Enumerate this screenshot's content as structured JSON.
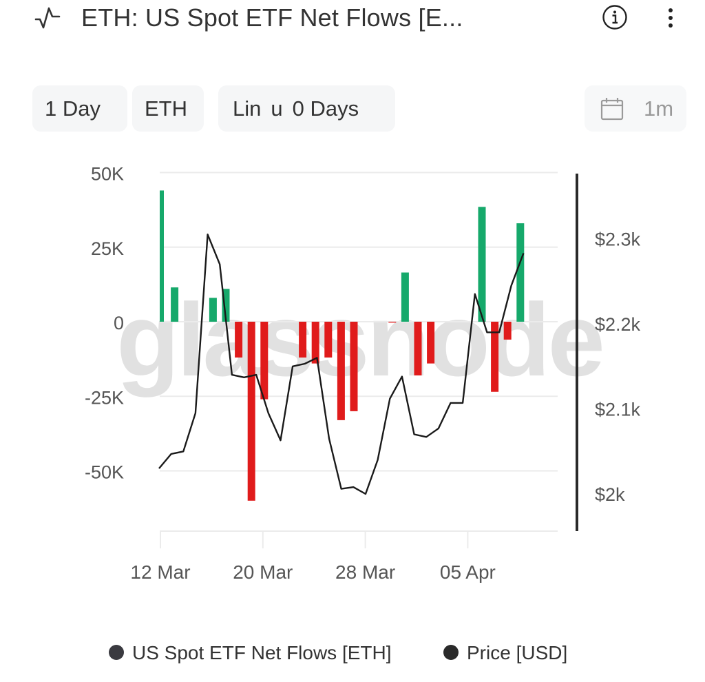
{
  "header": {
    "icon": "metric-pulse-icon",
    "title": "ETH: US Spot ETF Net Flows [E...",
    "info_icon": "info-icon",
    "more_icon": "more-vertical-icon"
  },
  "toolbar": {
    "resolution": "1 Day",
    "asset": "ETH",
    "scale_label": "Lin",
    "scale_sep": "u",
    "smoothing": "0 Days",
    "date_icon": "calendar-icon",
    "range": "1m"
  },
  "colors": {
    "positive": "#16a96b",
    "negative": "#e01b1b",
    "price_line": "#1a1a1a",
    "grid": "#ebebeb",
    "watermark": "#d7d7d7",
    "right_axis": "#2a2a2a"
  },
  "watermark": "glassnode",
  "legend": {
    "items": [
      {
        "label": "US Spot ETF Net Flows [ETH]",
        "color": "#3a3a40"
      },
      {
        "label": "Price [USD]",
        "color": "#2a2a2a"
      }
    ]
  },
  "chart_data": {
    "type": "bar+line",
    "title": "ETH: US Spot ETF Net Flows [ETH]",
    "x_tick_labels": [
      "12 Mar",
      "20 Mar",
      "28 Mar",
      "05 Apr"
    ],
    "left_axis": {
      "label": "US Spot ETF Net Flows [ETH]",
      "ticks": [
        "50K",
        "25K",
        "0",
        "-25K",
        "-50K"
      ],
      "range": [
        -70000,
        52000
      ]
    },
    "right_axis": {
      "label": "Price [USD]",
      "ticks": [
        "$2.3k",
        "$2.2k",
        "$2.1k",
        "$2k"
      ],
      "range": [
        1960,
        2380
      ]
    },
    "grid": true,
    "legend_position": "bottom",
    "series": [
      {
        "name": "US Spot ETF Net Flows [ETH]",
        "type": "bar",
        "x": [
          "12 Mar",
          "13 Mar",
          "16 Mar",
          "17 Mar",
          "18 Mar",
          "19 Mar",
          "20 Mar",
          "23 Mar",
          "24 Mar",
          "25 Mar",
          "26 Mar",
          "27 Mar",
          "30 Mar",
          "31 Mar",
          "01 Apr",
          "02 Apr",
          "06 Apr",
          "07 Apr",
          "08 Apr",
          "09 Apr"
        ],
        "values": [
          44000,
          11500,
          8000,
          11000,
          -12000,
          -60000,
          -26000,
          -12000,
          -14000,
          -12000,
          -33000,
          -30000,
          -300,
          16500,
          -18000,
          -14000,
          38500,
          -23500,
          -6000,
          33000
        ]
      },
      {
        "name": "Price [USD]",
        "type": "line",
        "x": [
          "12 Mar",
          "13 Mar",
          "14 Mar",
          "15 Mar",
          "16 Mar",
          "17 Mar",
          "18 Mar",
          "19 Mar",
          "20 Mar",
          "21 Mar",
          "22 Mar",
          "23 Mar",
          "24 Mar",
          "25 Mar",
          "26 Mar",
          "27 Mar",
          "28 Mar",
          "29 Mar",
          "30 Mar",
          "31 Mar",
          "01 Apr",
          "02 Apr",
          "03 Apr",
          "04 Apr",
          "05 Apr",
          "06 Apr",
          "07 Apr",
          "08 Apr",
          "09 Apr",
          "10 Apr",
          "11 Apr"
        ],
        "values": [
          2030,
          2047,
          2050,
          2095,
          2305,
          2270,
          2140,
          2137,
          2140,
          2095,
          2063,
          2150,
          2153,
          2160,
          2065,
          2006,
          2008,
          2000,
          2040,
          2112,
          2138,
          2070,
          2067,
          2077,
          2107,
          2107,
          2235,
          2190,
          2190,
          2245,
          2283
        ]
      }
    ]
  }
}
